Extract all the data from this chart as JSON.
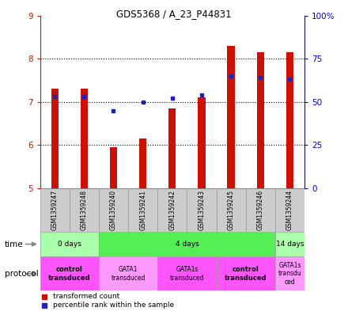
{
  "title": "GDS5368 / A_23_P44831",
  "samples": [
    "GSM1359247",
    "GSM1359248",
    "GSM1359240",
    "GSM1359241",
    "GSM1359242",
    "GSM1359243",
    "GSM1359245",
    "GSM1359246",
    "GSM1359244"
  ],
  "transformed_counts": [
    7.3,
    7.3,
    5.95,
    6.15,
    6.85,
    7.1,
    8.3,
    8.15,
    8.15
  ],
  "percentile_ranks": [
    53,
    53,
    45,
    50,
    52,
    54,
    65,
    64,
    63
  ],
  "ylim": [
    5,
    9
  ],
  "yticks": [
    5,
    6,
    7,
    8,
    9
  ],
  "right_yticks": [
    0,
    25,
    50,
    75,
    100
  ],
  "right_ytick_labels": [
    "0",
    "25",
    "50",
    "75",
    "100%"
  ],
  "right_ylim": [
    0,
    100
  ],
  "bar_color": "#cc1100",
  "dot_color": "#2222bb",
  "bar_width": 0.25,
  "time_groups": [
    {
      "label": "0 days",
      "start": 0,
      "end": 2,
      "color": "#aaffaa"
    },
    {
      "label": "4 days",
      "start": 2,
      "end": 8,
      "color": "#55ee55"
    },
    {
      "label": "14 days",
      "start": 8,
      "end": 9,
      "color": "#aaffaa"
    }
  ],
  "protocol_groups": [
    {
      "label": "control\ntransduced",
      "start": 0,
      "end": 2,
      "color": "#ff55ff",
      "bold": true
    },
    {
      "label": "GATA1\ntransduced",
      "start": 2,
      "end": 4,
      "color": "#ff99ff",
      "bold": false
    },
    {
      "label": "GATA1s\ntransduced",
      "start": 4,
      "end": 6,
      "color": "#ff55ff",
      "bold": false
    },
    {
      "label": "control\ntransduced",
      "start": 6,
      "end": 8,
      "color": "#ff55ff",
      "bold": true
    },
    {
      "label": "GATA1s\ntransdu\nced",
      "start": 8,
      "end": 9,
      "color": "#ff99ff",
      "bold": false
    }
  ],
  "bg_color": "#ffffff",
  "grid_color": "#000000",
  "axis_label_color_left": "#cc1100",
  "axis_label_color_right": "#0000cc",
  "sample_bg": "#cccccc"
}
